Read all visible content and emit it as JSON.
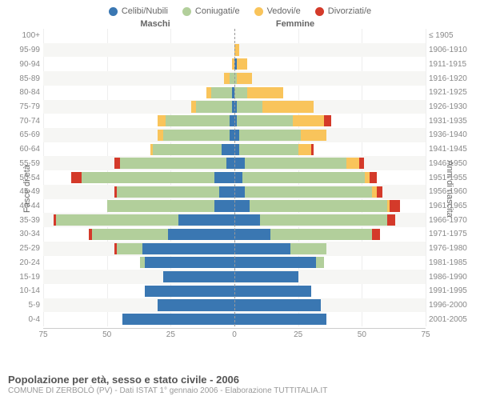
{
  "type": "population-pyramid",
  "legend": [
    {
      "label": "Celibi/Nubili",
      "color": "#3a77b2"
    },
    {
      "label": "Coniugati/e",
      "color": "#b2cf9b"
    },
    {
      "label": "Vedovi/e",
      "color": "#f9c45b"
    },
    {
      "label": "Divorziati/e",
      "color": "#d43a2a"
    }
  ],
  "columns": {
    "left": "Maschi",
    "right": "Femmine"
  },
  "y_left": "Fasce di età",
  "y_right": "Anni di nascita",
  "x_ticks": [
    75,
    50,
    25,
    0,
    25,
    50,
    75
  ],
  "x_max": 75,
  "row_bg_alt": "#f6f6f4",
  "grid_color": "#eeeeee",
  "axis_color": "#cccccc",
  "tick_fontsize": 10,
  "label_color": "#888888",
  "rows": [
    {
      "age": "100+",
      "birth": "≤ 1905",
      "m": [
        0,
        0,
        0,
        0
      ],
      "f": [
        0,
        0,
        0,
        0
      ]
    },
    {
      "age": "95-99",
      "birth": "1906-1910",
      "m": [
        0,
        0,
        0,
        0
      ],
      "f": [
        0,
        0,
        2,
        0
      ]
    },
    {
      "age": "90-94",
      "birth": "1911-1915",
      "m": [
        0,
        0,
        1,
        0
      ],
      "f": [
        1,
        0,
        4,
        0
      ]
    },
    {
      "age": "85-89",
      "birth": "1916-1920",
      "m": [
        0,
        2,
        2,
        0
      ],
      "f": [
        0,
        1,
        6,
        0
      ]
    },
    {
      "age": "80-84",
      "birth": "1921-1925",
      "m": [
        1,
        8,
        2,
        0
      ],
      "f": [
        0,
        5,
        14,
        0
      ]
    },
    {
      "age": "75-79",
      "birth": "1926-1930",
      "m": [
        1,
        14,
        2,
        0
      ],
      "f": [
        1,
        10,
        20,
        0
      ]
    },
    {
      "age": "70-74",
      "birth": "1931-1935",
      "m": [
        2,
        25,
        3,
        0
      ],
      "f": [
        1,
        22,
        12,
        3
      ]
    },
    {
      "age": "65-69",
      "birth": "1936-1940",
      "m": [
        2,
        26,
        2,
        0
      ],
      "f": [
        2,
        24,
        10,
        0
      ]
    },
    {
      "age": "60-64",
      "birth": "1941-1945",
      "m": [
        5,
        27,
        1,
        0
      ],
      "f": [
        2,
        23,
        5,
        1
      ]
    },
    {
      "age": "55-59",
      "birth": "1946-1950",
      "m": [
        3,
        42,
        0,
        2
      ],
      "f": [
        4,
        40,
        5,
        2
      ]
    },
    {
      "age": "50-54",
      "birth": "1951-1955",
      "m": [
        8,
        52,
        0,
        4
      ],
      "f": [
        3,
        48,
        2,
        3
      ]
    },
    {
      "age": "45-49",
      "birth": "1956-1960",
      "m": [
        6,
        40,
        0,
        1
      ],
      "f": [
        4,
        50,
        2,
        2
      ]
    },
    {
      "age": "40-44",
      "birth": "1961-1965",
      "m": [
        8,
        42,
        0,
        0
      ],
      "f": [
        6,
        54,
        1,
        4
      ]
    },
    {
      "age": "35-39",
      "birth": "1966-1970",
      "m": [
        22,
        48,
        0,
        1
      ],
      "f": [
        10,
        50,
        0,
        3
      ]
    },
    {
      "age": "30-34",
      "birth": "1971-1975",
      "m": [
        26,
        30,
        0,
        1
      ],
      "f": [
        14,
        40,
        0,
        3
      ]
    },
    {
      "age": "25-29",
      "birth": "1976-1980",
      "m": [
        36,
        10,
        0,
        1
      ],
      "f": [
        22,
        14,
        0,
        0
      ]
    },
    {
      "age": "20-24",
      "birth": "1981-1985",
      "m": [
        35,
        2,
        0,
        0
      ],
      "f": [
        32,
        3,
        0,
        0
      ]
    },
    {
      "age": "15-19",
      "birth": "1986-1990",
      "m": [
        28,
        0,
        0,
        0
      ],
      "f": [
        25,
        0,
        0,
        0
      ]
    },
    {
      "age": "10-14",
      "birth": "1991-1995",
      "m": [
        35,
        0,
        0,
        0
      ],
      "f": [
        30,
        0,
        0,
        0
      ]
    },
    {
      "age": "5-9",
      "birth": "1996-2000",
      "m": [
        30,
        0,
        0,
        0
      ],
      "f": [
        34,
        0,
        0,
        0
      ]
    },
    {
      "age": "0-4",
      "birth": "2001-2005",
      "m": [
        44,
        0,
        0,
        0
      ],
      "f": [
        36,
        0,
        0,
        0
      ]
    }
  ],
  "title": "Popolazione per età, sesso e stato civile - 2006",
  "subtitle": "COMUNE DI ZERBOLÒ (PV) - Dati ISTAT 1° gennaio 2006 - Elaborazione TUTTITALIA.IT"
}
